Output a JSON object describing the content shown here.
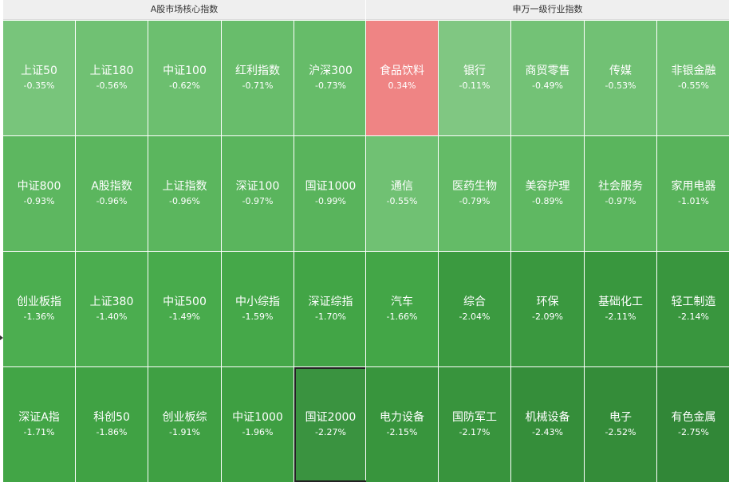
{
  "left_panel": {
    "title": "A股市场核心指数",
    "cells": [
      {
        "name": "上证50",
        "change": "-0.35%",
        "color": "#78c57b"
      },
      {
        "name": "上证180",
        "change": "-0.56%",
        "color": "#70c173"
      },
      {
        "name": "中证100",
        "change": "-0.62%",
        "color": "#6cbf6f"
      },
      {
        "name": "红利指数",
        "change": "-0.71%",
        "color": "#68bd6b"
      },
      {
        "name": "沪深300",
        "change": "-0.73%",
        "color": "#66bc69"
      },
      {
        "name": "中证800",
        "change": "-0.93%",
        "color": "#5db760"
      },
      {
        "name": "A股指数",
        "change": "-0.96%",
        "color": "#5bb65e"
      },
      {
        "name": "上证指数",
        "change": "-0.96%",
        "color": "#5bb65e"
      },
      {
        "name": "深证100",
        "change": "-0.97%",
        "color": "#5ab55d"
      },
      {
        "name": "国证1000",
        "change": "-0.99%",
        "color": "#59b45c"
      },
      {
        "name": "创业板指",
        "change": "-1.36%",
        "color": "#4cae50"
      },
      {
        "name": "上证380",
        "change": "-1.40%",
        "color": "#4bad4f"
      },
      {
        "name": "中证500",
        "change": "-1.49%",
        "color": "#48ab4c"
      },
      {
        "name": "中小综指",
        "change": "-1.59%",
        "color": "#45a849"
      },
      {
        "name": "深证综指",
        "change": "-1.70%",
        "color": "#42a546"
      },
      {
        "name": "深证A指",
        "change": "-1.71%",
        "color": "#42a546"
      },
      {
        "name": "科创50",
        "change": "-1.86%",
        "color": "#40a244"
      },
      {
        "name": "创业板综",
        "change": "-1.91%",
        "color": "#3fa043"
      },
      {
        "name": "中证1000",
        "change": "-1.96%",
        "color": "#3e9f42"
      },
      {
        "name": "国证2000",
        "change": "-2.27%",
        "color": "#3a9340",
        "selected": true
      }
    ]
  },
  "right_panel": {
    "title": "申万一级行业指数",
    "cells": [
      {
        "name": "食品饮料",
        "change": "0.34%",
        "color": "#ef8484"
      },
      {
        "name": "银行",
        "change": "-0.11%",
        "color": "#80c782"
      },
      {
        "name": "商贸零售",
        "change": "-0.49%",
        "color": "#73c276"
      },
      {
        "name": "传媒",
        "change": "-0.53%",
        "color": "#71c174"
      },
      {
        "name": "非银金融",
        "change": "-0.55%",
        "color": "#70c173"
      },
      {
        "name": "通信",
        "change": "-0.55%",
        "color": "#70c173"
      },
      {
        "name": "医药生物",
        "change": "-0.79%",
        "color": "#64bb67"
      },
      {
        "name": "美容护理",
        "change": "-0.89%",
        "color": "#5fb862"
      },
      {
        "name": "社会服务",
        "change": "-0.97%",
        "color": "#5ab55d"
      },
      {
        "name": "家用电器",
        "change": "-1.01%",
        "color": "#58b35b"
      },
      {
        "name": "汽车",
        "change": "-1.66%",
        "color": "#43a647"
      },
      {
        "name": "综合",
        "change": "-2.04%",
        "color": "#3b9a40"
      },
      {
        "name": "环保",
        "change": "-2.09%",
        "color": "#3a983f"
      },
      {
        "name": "基础化工",
        "change": "-2.11%",
        "color": "#39973e"
      },
      {
        "name": "轻工制造",
        "change": "-2.14%",
        "color": "#39963e"
      },
      {
        "name": "电力设备",
        "change": "-2.15%",
        "color": "#38953d"
      },
      {
        "name": "国防军工",
        "change": "-2.17%",
        "color": "#38943d"
      },
      {
        "name": "机械设备",
        "change": "-2.43%",
        "color": "#358e3a"
      },
      {
        "name": "电子",
        "change": "-2.52%",
        "color": "#348c39"
      },
      {
        "name": "有色金属",
        "change": "-2.75%",
        "color": "#318737"
      }
    ]
  }
}
